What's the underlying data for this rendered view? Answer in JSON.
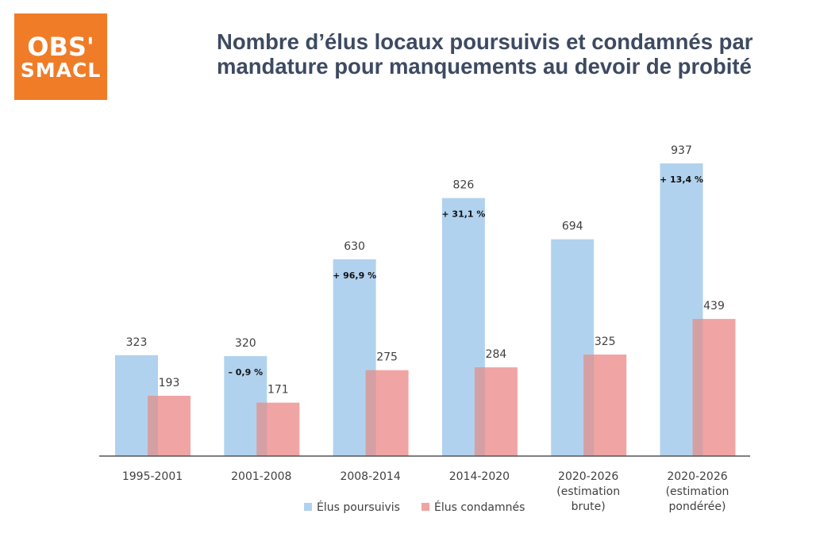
{
  "logo": {
    "line1": "OBS'",
    "line2": "SMACL"
  },
  "title_line1": "Nombre d’élus locaux poursuivis et condamnés par",
  "title_line2": "mandature pour manquements au devoir de probité",
  "colors": {
    "poursuivis": "#b1d2ee",
    "condamnes": "#f0a4a3",
    "overlap": "#d5a0a4",
    "axis": "#555555",
    "brand": "#f07c27",
    "title": "#3d4a61"
  },
  "chart_data": {
    "type": "bar",
    "categories": [
      [
        "1995-2001"
      ],
      [
        "2001-2008"
      ],
      [
        "2008-2014"
      ],
      [
        "2014-2020"
      ],
      [
        "2020-2026",
        "(estimation",
        "brute)"
      ],
      [
        "2020-2026",
        "(estimation",
        "pondérée)"
      ]
    ],
    "series": [
      {
        "name": "Élus poursuivis",
        "values": [
          323,
          320,
          630,
          826,
          694,
          937
        ],
        "labels": [
          "323",
          "320",
          "630",
          "826",
          "694",
          "937"
        ]
      },
      {
        "name": "Élus condamnés",
        "values": [
          193,
          171,
          275,
          284,
          325,
          439
        ],
        "labels": [
          "193",
          "171",
          "275",
          "284",
          "325",
          "439"
        ]
      }
    ],
    "annotations": [
      "",
      "– 0,9 %",
      "+ 96,9 %",
      "+ 31,1 %",
      "",
      "+ 13,4 %"
    ],
    "ylim": [
      0,
      937
    ],
    "legend_position": "bottom",
    "grid": false
  }
}
